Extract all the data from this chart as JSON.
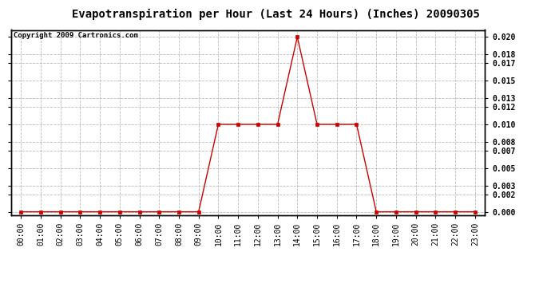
{
  "title": "Evapotranspiration per Hour (Last 24 Hours) (Inches) 20090305",
  "copyright_text": "Copyright 2009 Cartronics.com",
  "hours": [
    0,
    1,
    2,
    3,
    4,
    5,
    6,
    7,
    8,
    9,
    10,
    11,
    12,
    13,
    14,
    15,
    16,
    17,
    18,
    19,
    20,
    21,
    22,
    23
  ],
  "hour_labels": [
    "00:00",
    "01:00",
    "02:00",
    "03:00",
    "04:00",
    "05:00",
    "06:00",
    "07:00",
    "08:00",
    "09:00",
    "10:00",
    "11:00",
    "12:00",
    "13:00",
    "14:00",
    "15:00",
    "16:00",
    "17:00",
    "18:00",
    "19:00",
    "20:00",
    "21:00",
    "22:00",
    "23:00"
  ],
  "values": [
    0.0,
    0.0,
    0.0,
    0.0,
    0.0,
    0.0,
    0.0,
    0.0,
    0.0,
    0.0,
    0.01,
    0.01,
    0.01,
    0.01,
    0.02,
    0.01,
    0.01,
    0.01,
    0.0,
    0.0,
    0.0,
    0.0,
    0.0,
    0.0
  ],
  "line_color": "#cc0000",
  "marker": "s",
  "marker_size": 2.5,
  "marker_color": "#cc0000",
  "background_color": "#ffffff",
  "plot_bg_color": "#ffffff",
  "grid_color": "#bbbbbb",
  "grid_style": "--",
  "ylim": [
    -0.0004,
    0.0208
  ],
  "yticks": [
    0.0,
    0.002,
    0.003,
    0.005,
    0.007,
    0.008,
    0.01,
    0.012,
    0.013,
    0.015,
    0.017,
    0.018,
    0.02
  ],
  "title_fontsize": 10,
  "tick_fontsize": 7,
  "copyright_fontsize": 6.5
}
